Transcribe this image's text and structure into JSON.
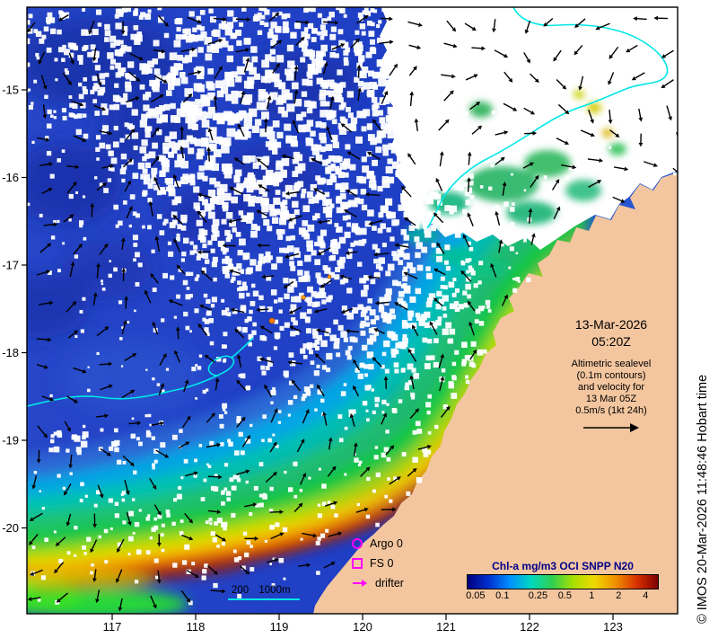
{
  "map": {
    "date": "13-Mar-2026",
    "time": "05:20Z",
    "annotation": {
      "lines": [
        "Altimetric sealevel",
        "(0.1m contours)",
        "and velocity for",
        "13 Mar 05Z",
        "0.5m/s (1kt 24h)"
      ]
    },
    "markers_legend": {
      "argo": "Argo 0",
      "fs": "FS 0",
      "drifter": "drifter"
    },
    "scalebar": {
      "label_200": "200",
      "label_1000": "1000m"
    }
  },
  "colorbar": {
    "title": "Chl-a mg/m3 OCI SNPP N20",
    "ticks": [
      "0.05",
      "0.1",
      "0.25",
      "0.5",
      "1",
      "2",
      "4"
    ],
    "gradient": [
      "#00007f",
      "#0030d0",
      "#0090ff",
      "#00d8c0",
      "#30d050",
      "#a8e000",
      "#f0d800",
      "#f09000",
      "#d83000",
      "#7f0000"
    ]
  },
  "axes": {
    "x_ticks": [
      "117",
      "118",
      "119",
      "120",
      "121",
      "122",
      "123"
    ],
    "y_ticks": [
      "-15",
      "-16",
      "-17",
      "-18",
      "-19",
      "-20"
    ]
  },
  "copyright": "© IMOS 20-Mar-2026 11:48:46 Hobart time",
  "palette": {
    "magenta": "#ff00ff",
    "cyan": "#00e6e6",
    "titleblue": "#00008b",
    "land": "#f3c69f"
  }
}
